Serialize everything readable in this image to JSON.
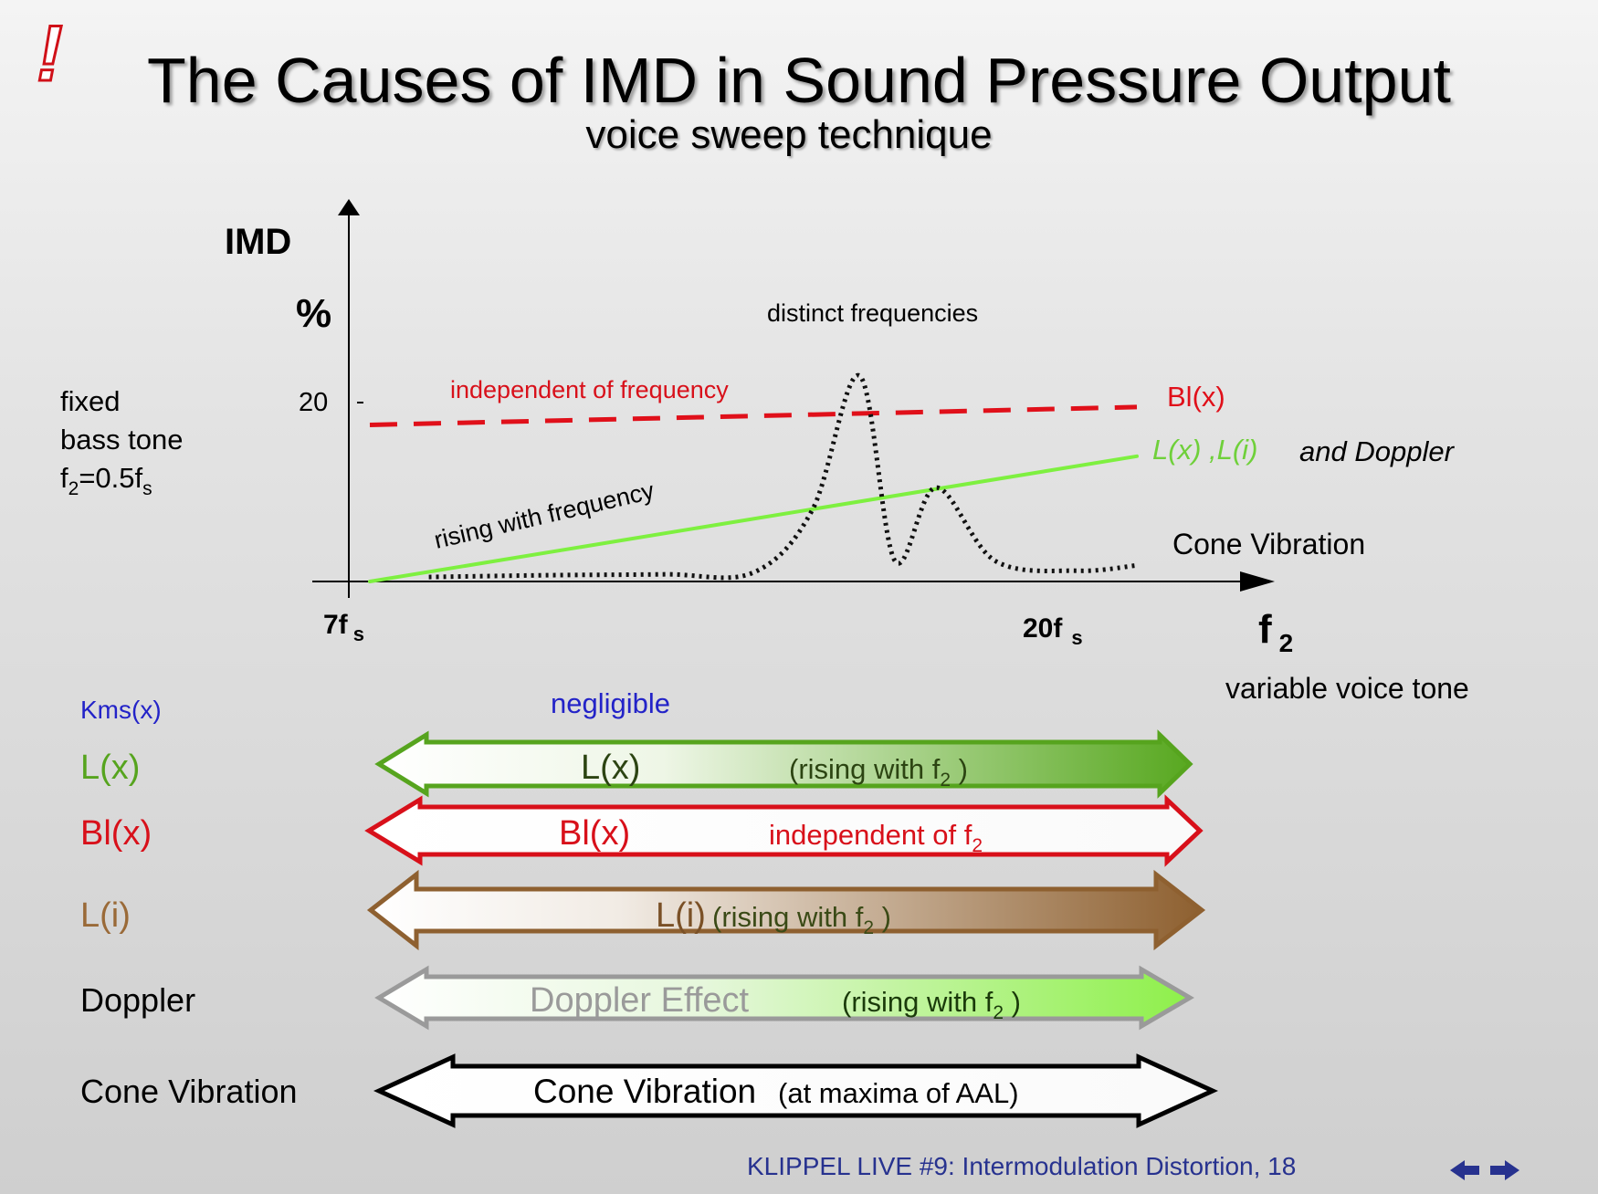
{
  "header": {
    "marker": "!",
    "title": "The Causes of IMD in Sound Pressure Output",
    "subtitle": "voice sweep technique"
  },
  "chart_data": {
    "type": "line",
    "ylabel": "IMD",
    "yunit": "%",
    "y_tick": "20",
    "y_tick_value": 20,
    "xlabel": "f",
    "xlabel_sub": "2",
    "xlabel_note": "variable voice tone",
    "x_ticks": [
      {
        "main": "7f",
        "sub": "s"
      },
      {
        "main": "20f",
        "sub": "s"
      }
    ],
    "x_tick_values": [
      7,
      20
    ],
    "left_note": {
      "line1": "fixed",
      "line2": "bass tone",
      "line3_main": "f",
      "line3_sub": "2",
      "line3_mid": "=0.5f",
      "line3_sub2": "s"
    },
    "series": [
      {
        "name": "Bl(x)",
        "color": "#e0101a",
        "style": "dashed",
        "x": [
          7,
          20
        ],
        "y": [
          17.5,
          19.5
        ]
      },
      {
        "name": "L(x) ,L(i)",
        "extra": "and Doppler",
        "color": "#7ef040",
        "style": "solid",
        "x": [
          7,
          20
        ],
        "y": [
          0,
          14
        ]
      },
      {
        "name": "Cone Vibration",
        "color": "#111111",
        "style": "dotted",
        "x": [
          8,
          10,
          12,
          13.5,
          14.5,
          15.3,
          15.9,
          16.6,
          17.6,
          19,
          20
        ],
        "y": [
          0.5,
          0.7,
          0.8,
          1,
          8,
          23,
          2.3,
          10.5,
          2.3,
          1.2,
          1.8
        ]
      }
    ],
    "annotations": {
      "independent": "independent of frequency",
      "rising": "rising with frequency",
      "distinct": "distinct frequencies"
    }
  },
  "causes": {
    "kms": {
      "label": "Kms(x)",
      "note": "negligible"
    },
    "rows": [
      {
        "label": "L(x)",
        "name": "L(x)",
        "text": "(rising with f",
        "sub": "2",
        "end": " )"
      },
      {
        "label": "Bl(x)",
        "name": "Bl(x)",
        "text": "independent of f",
        "sub": "2"
      },
      {
        "label": "L(i)",
        "name": "L(i)",
        "text": " (rising with f",
        "sub": "2",
        "end": " )"
      },
      {
        "label": "Doppler",
        "name": "Doppler Effect",
        "text": "(rising with f",
        "sub": "2",
        "end": " )"
      },
      {
        "label": "Cone Vibration",
        "name": "Cone Vibration",
        "text": " (at maxima of AAL)"
      }
    ]
  },
  "footer": {
    "text": "KLIPPEL LIVE #9: Intermodulation Distortion, 18"
  },
  "colors": {
    "title_accent": "#d01018",
    "footer": "#27328f",
    "kms": "#2323c8"
  }
}
